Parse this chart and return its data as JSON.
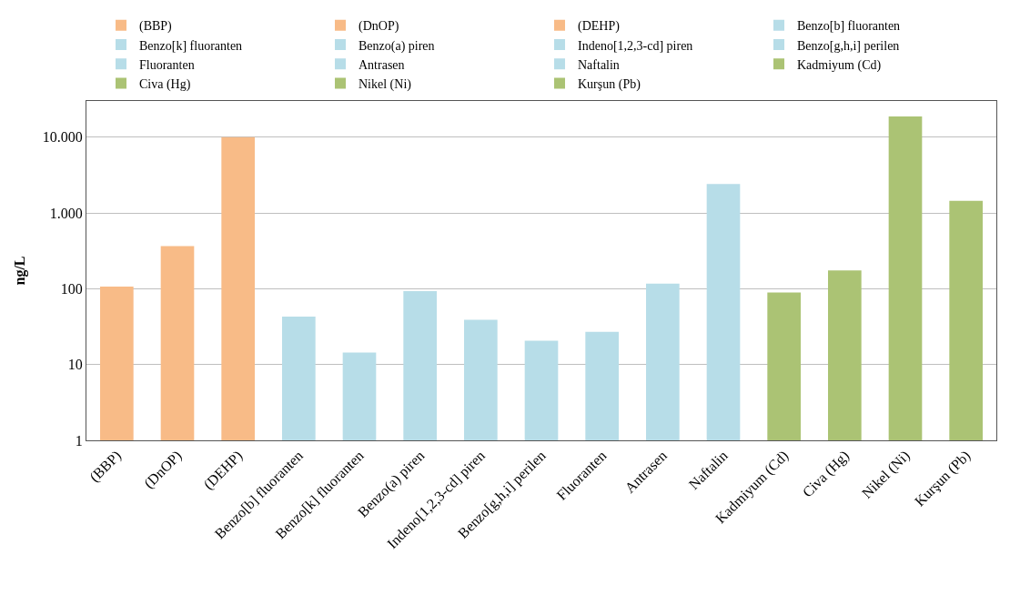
{
  "chart_data": {
    "type": "bar",
    "ylabel": "ng/L",
    "log": true,
    "grid": "y",
    "legend": "top",
    "categories": [
      "(BBP)",
      "(DnOP)",
      "(DEHP)",
      "Benzo[b] fluoranten",
      "Benzo[k] fluoranten",
      "Benzo(a) piren",
      "Indeno[1,2,3-cd] piren",
      "Benzo[g,h,i] perilen",
      "Fluoranten",
      "Antrasen",
      "Naftalin",
      "Kadmiyum (Cd)",
      "Civa (Hg)",
      "Nikel (Ni)",
      "Kurşun (Pb)"
    ],
    "ylim": [
      1,
      30000
    ],
    "yticks": [
      1,
      10,
      100,
      {
        "value": 1000,
        "label": "1.000"
      },
      {
        "value": 10000,
        "label": "10.000"
      }
    ],
    "series": [
      {
        "name": "(BBP)",
        "color": "#f8bb87",
        "values": [
          107,
          null,
          null,
          null,
          null,
          null,
          null,
          null,
          null,
          null,
          null,
          null,
          null,
          null,
          null
        ]
      },
      {
        "name": "(DnOP)",
        "color": "#f8bb87",
        "values": [
          null,
          365,
          null,
          null,
          null,
          null,
          null,
          null,
          null,
          null,
          null,
          null,
          null,
          null,
          null
        ]
      },
      {
        "name": "(DEHP)",
        "color": "#f8bb87",
        "values": [
          null,
          null,
          10000,
          null,
          null,
          null,
          null,
          null,
          null,
          null,
          null,
          null,
          null,
          null,
          null
        ]
      },
      {
        "name": "Benzo[b] fluoranten",
        "color": "#b7dde8",
        "values": [
          null,
          null,
          null,
          43,
          null,
          null,
          null,
          null,
          null,
          null,
          null,
          null,
          null,
          null,
          null
        ]
      },
      {
        "name": "Benzo[k] fluoranten",
        "color": "#b7dde8",
        "values": [
          null,
          null,
          null,
          null,
          14.4,
          null,
          null,
          null,
          null,
          null,
          null,
          null,
          null,
          null,
          null
        ]
      },
      {
        "name": "Benzo(a) piren",
        "color": "#b7dde8",
        "values": [
          null,
          null,
          null,
          null,
          null,
          93,
          null,
          null,
          null,
          null,
          null,
          null,
          null,
          null,
          null
        ]
      },
      {
        "name": "Indeno[1,2,3-cd] piren",
        "color": "#b7dde8",
        "values": [
          null,
          null,
          null,
          null,
          null,
          null,
          39,
          null,
          null,
          null,
          null,
          null,
          null,
          null,
          null
        ]
      },
      {
        "name": "Benzo[g,h,i] perilen",
        "color": "#b7dde8",
        "values": [
          null,
          null,
          null,
          null,
          null,
          null,
          null,
          20.6,
          null,
          null,
          null,
          null,
          null,
          null,
          null
        ]
      },
      {
        "name": "Fluoranten",
        "color": "#b7dde8",
        "values": [
          null,
          null,
          null,
          null,
          null,
          null,
          null,
          null,
          27,
          null,
          null,
          null,
          null,
          null,
          null
        ]
      },
      {
        "name": "Antrasen",
        "color": "#b7dde8",
        "values": [
          null,
          null,
          null,
          null,
          null,
          null,
          null,
          null,
          null,
          117,
          null,
          null,
          null,
          null,
          null
        ]
      },
      {
        "name": "Naftalin",
        "color": "#b7dde8",
        "values": [
          null,
          null,
          null,
          null,
          null,
          null,
          null,
          null,
          null,
          null,
          2410,
          null,
          null,
          null,
          null
        ]
      },
      {
        "name": "Kadmiyum (Cd)",
        "color": "#abc374",
        "values": [
          null,
          null,
          null,
          null,
          null,
          null,
          null,
          null,
          null,
          null,
          null,
          89,
          null,
          null,
          null
        ]
      },
      {
        "name": "Civa (Hg)",
        "color": "#abc374",
        "values": [
          null,
          null,
          null,
          null,
          null,
          null,
          null,
          null,
          null,
          null,
          null,
          null,
          174,
          null,
          null
        ]
      },
      {
        "name": "Nikel (Ni)",
        "color": "#abc374",
        "values": [
          null,
          null,
          null,
          null,
          null,
          null,
          null,
          null,
          null,
          null,
          null,
          null,
          null,
          18800,
          null
        ]
      },
      {
        "name": "Kurşun (Pb)",
        "color": "#abc374",
        "values": [
          null,
          null,
          null,
          null,
          null,
          null,
          null,
          null,
          null,
          null,
          null,
          null,
          null,
          null,
          1440
        ]
      }
    ]
  }
}
